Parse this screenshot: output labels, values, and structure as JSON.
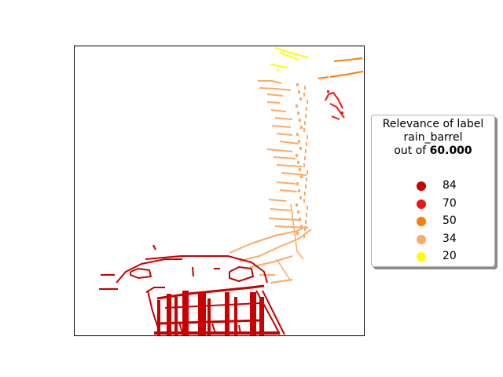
{
  "chart_data": {
    "type": "scatter",
    "title": "",
    "xlabel": "",
    "ylabel": "",
    "axes_ticks": "none",
    "grid": false,
    "legend": {
      "placement": "right",
      "title_line1": "Relevance of label",
      "title_line2": "rain_barrel",
      "title_line3_prefix": "out of ",
      "title_line3_value": "60.000",
      "entries": [
        {
          "label": "84",
          "color": "#c80000"
        },
        {
          "label": "70",
          "color": "#f01414"
        },
        {
          "label": "50",
          "color": "#fa7d0a"
        },
        {
          "label": "34",
          "color": "#fcaa64"
        },
        {
          "label": "20",
          "color": "#ffff00"
        }
      ]
    },
    "series": [
      {
        "name": "84",
        "color": "#c80000",
        "region": "base outline and structure, lower left"
      },
      {
        "name": "70",
        "color": "#f01414",
        "region": "small cluster, upper right"
      },
      {
        "name": "50",
        "color": "#fa7d0a",
        "region": "top right edge"
      },
      {
        "name": "34",
        "color": "#fcaa64",
        "region": "diagonal band, center to upper right"
      },
      {
        "name": "20",
        "color": "#ffff00",
        "region": "top, near upper edge"
      }
    ]
  }
}
